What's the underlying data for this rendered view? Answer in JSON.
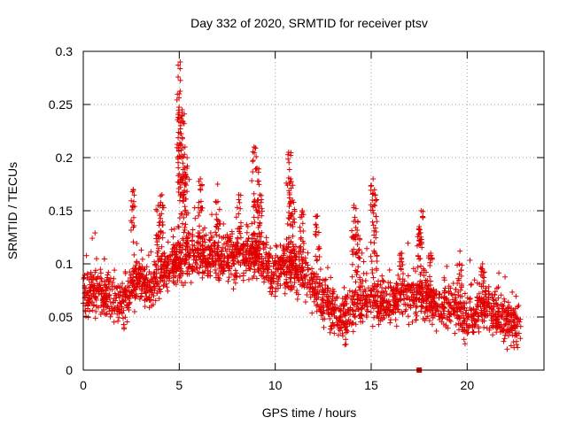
{
  "chart_data": {
    "type": "scatter",
    "title": "Day 332 of 2020, SRMTID for receiver ptsv",
    "xlabel": "GPS time / hours",
    "ylabel": "SRMTID / TECUs",
    "xlim": [
      0,
      24
    ],
    "ylim": [
      0,
      0.3
    ],
    "xticks": [
      0,
      5,
      10,
      15,
      20
    ],
    "yticks": [
      0,
      0.05,
      0.1,
      0.15,
      0.2,
      0.25,
      0.3
    ],
    "xtick_labels": [
      "0",
      "5",
      "10",
      "15",
      "20"
    ],
    "ytick_labels": [
      "0",
      "0.05",
      "0.1",
      "0.15",
      "0.2",
      "0.25",
      "0.3"
    ],
    "grid": true,
    "marker": "plus",
    "color": "#e00000",
    "zero_marker": {
      "x": 17.5,
      "y": 0
    },
    "trend": [
      [
        0.0,
        0.07
      ],
      [
        0.5,
        0.075
      ],
      [
        1.0,
        0.07
      ],
      [
        1.5,
        0.065
      ],
      [
        2.0,
        0.06
      ],
      [
        2.5,
        0.075
      ],
      [
        3.0,
        0.085
      ],
      [
        3.5,
        0.075
      ],
      [
        4.0,
        0.09
      ],
      [
        4.5,
        0.1
      ],
      [
        5.0,
        0.1
      ],
      [
        5.5,
        0.105
      ],
      [
        6.0,
        0.11
      ],
      [
        6.5,
        0.105
      ],
      [
        7.0,
        0.105
      ],
      [
        7.5,
        0.11
      ],
      [
        8.0,
        0.105
      ],
      [
        8.5,
        0.11
      ],
      [
        9.0,
        0.11
      ],
      [
        9.5,
        0.1
      ],
      [
        10.0,
        0.095
      ],
      [
        10.5,
        0.1
      ],
      [
        11.0,
        0.095
      ],
      [
        11.5,
        0.09
      ],
      [
        12.0,
        0.08
      ],
      [
        12.5,
        0.065
      ],
      [
        13.0,
        0.055
      ],
      [
        13.5,
        0.05
      ],
      [
        14.0,
        0.055
      ],
      [
        14.5,
        0.065
      ],
      [
        15.0,
        0.07
      ],
      [
        15.5,
        0.065
      ],
      [
        16.0,
        0.065
      ],
      [
        16.5,
        0.07
      ],
      [
        17.0,
        0.065
      ],
      [
        17.5,
        0.07
      ],
      [
        18.0,
        0.065
      ],
      [
        18.5,
        0.06
      ],
      [
        19.0,
        0.06
      ],
      [
        19.5,
        0.055
      ],
      [
        20.0,
        0.05
      ],
      [
        20.5,
        0.055
      ],
      [
        21.0,
        0.06
      ],
      [
        21.5,
        0.055
      ],
      [
        22.0,
        0.045
      ],
      [
        22.5,
        0.04
      ],
      [
        22.8,
        0.035
      ]
    ],
    "spread": 0.025,
    "peaks": [
      {
        "x": 5.05,
        "y": 0.29
      },
      {
        "x": 5.0,
        "y": 0.26
      },
      {
        "x": 5.15,
        "y": 0.245
      },
      {
        "x": 5.3,
        "y": 0.21
      },
      {
        "x": 5.4,
        "y": 0.19
      },
      {
        "x": 6.1,
        "y": 0.18
      },
      {
        "x": 8.9,
        "y": 0.21
      },
      {
        "x": 9.05,
        "y": 0.19
      },
      {
        "x": 10.7,
        "y": 0.205
      },
      {
        "x": 10.8,
        "y": 0.18
      },
      {
        "x": 2.6,
        "y": 0.17
      },
      {
        "x": 4.1,
        "y": 0.165
      },
      {
        "x": 3.9,
        "y": 0.155
      },
      {
        "x": 7.0,
        "y": 0.175
      },
      {
        "x": 8.1,
        "y": 0.165
      },
      {
        "x": 9.2,
        "y": 0.165
      },
      {
        "x": 10.9,
        "y": 0.16
      },
      {
        "x": 11.4,
        "y": 0.15
      },
      {
        "x": 15.1,
        "y": 0.18
      },
      {
        "x": 15.2,
        "y": 0.165
      },
      {
        "x": 14.1,
        "y": 0.155
      },
      {
        "x": 14.3,
        "y": 0.14
      },
      {
        "x": 17.6,
        "y": 0.15
      },
      {
        "x": 17.5,
        "y": 0.135
      },
      {
        "x": 12.2,
        "y": 0.145
      },
      {
        "x": 20.8,
        "y": 0.1
      },
      {
        "x": 16.6,
        "y": 0.11
      },
      {
        "x": 18.1,
        "y": 0.11
      },
      {
        "x": 19.6,
        "y": 0.1
      }
    ]
  }
}
